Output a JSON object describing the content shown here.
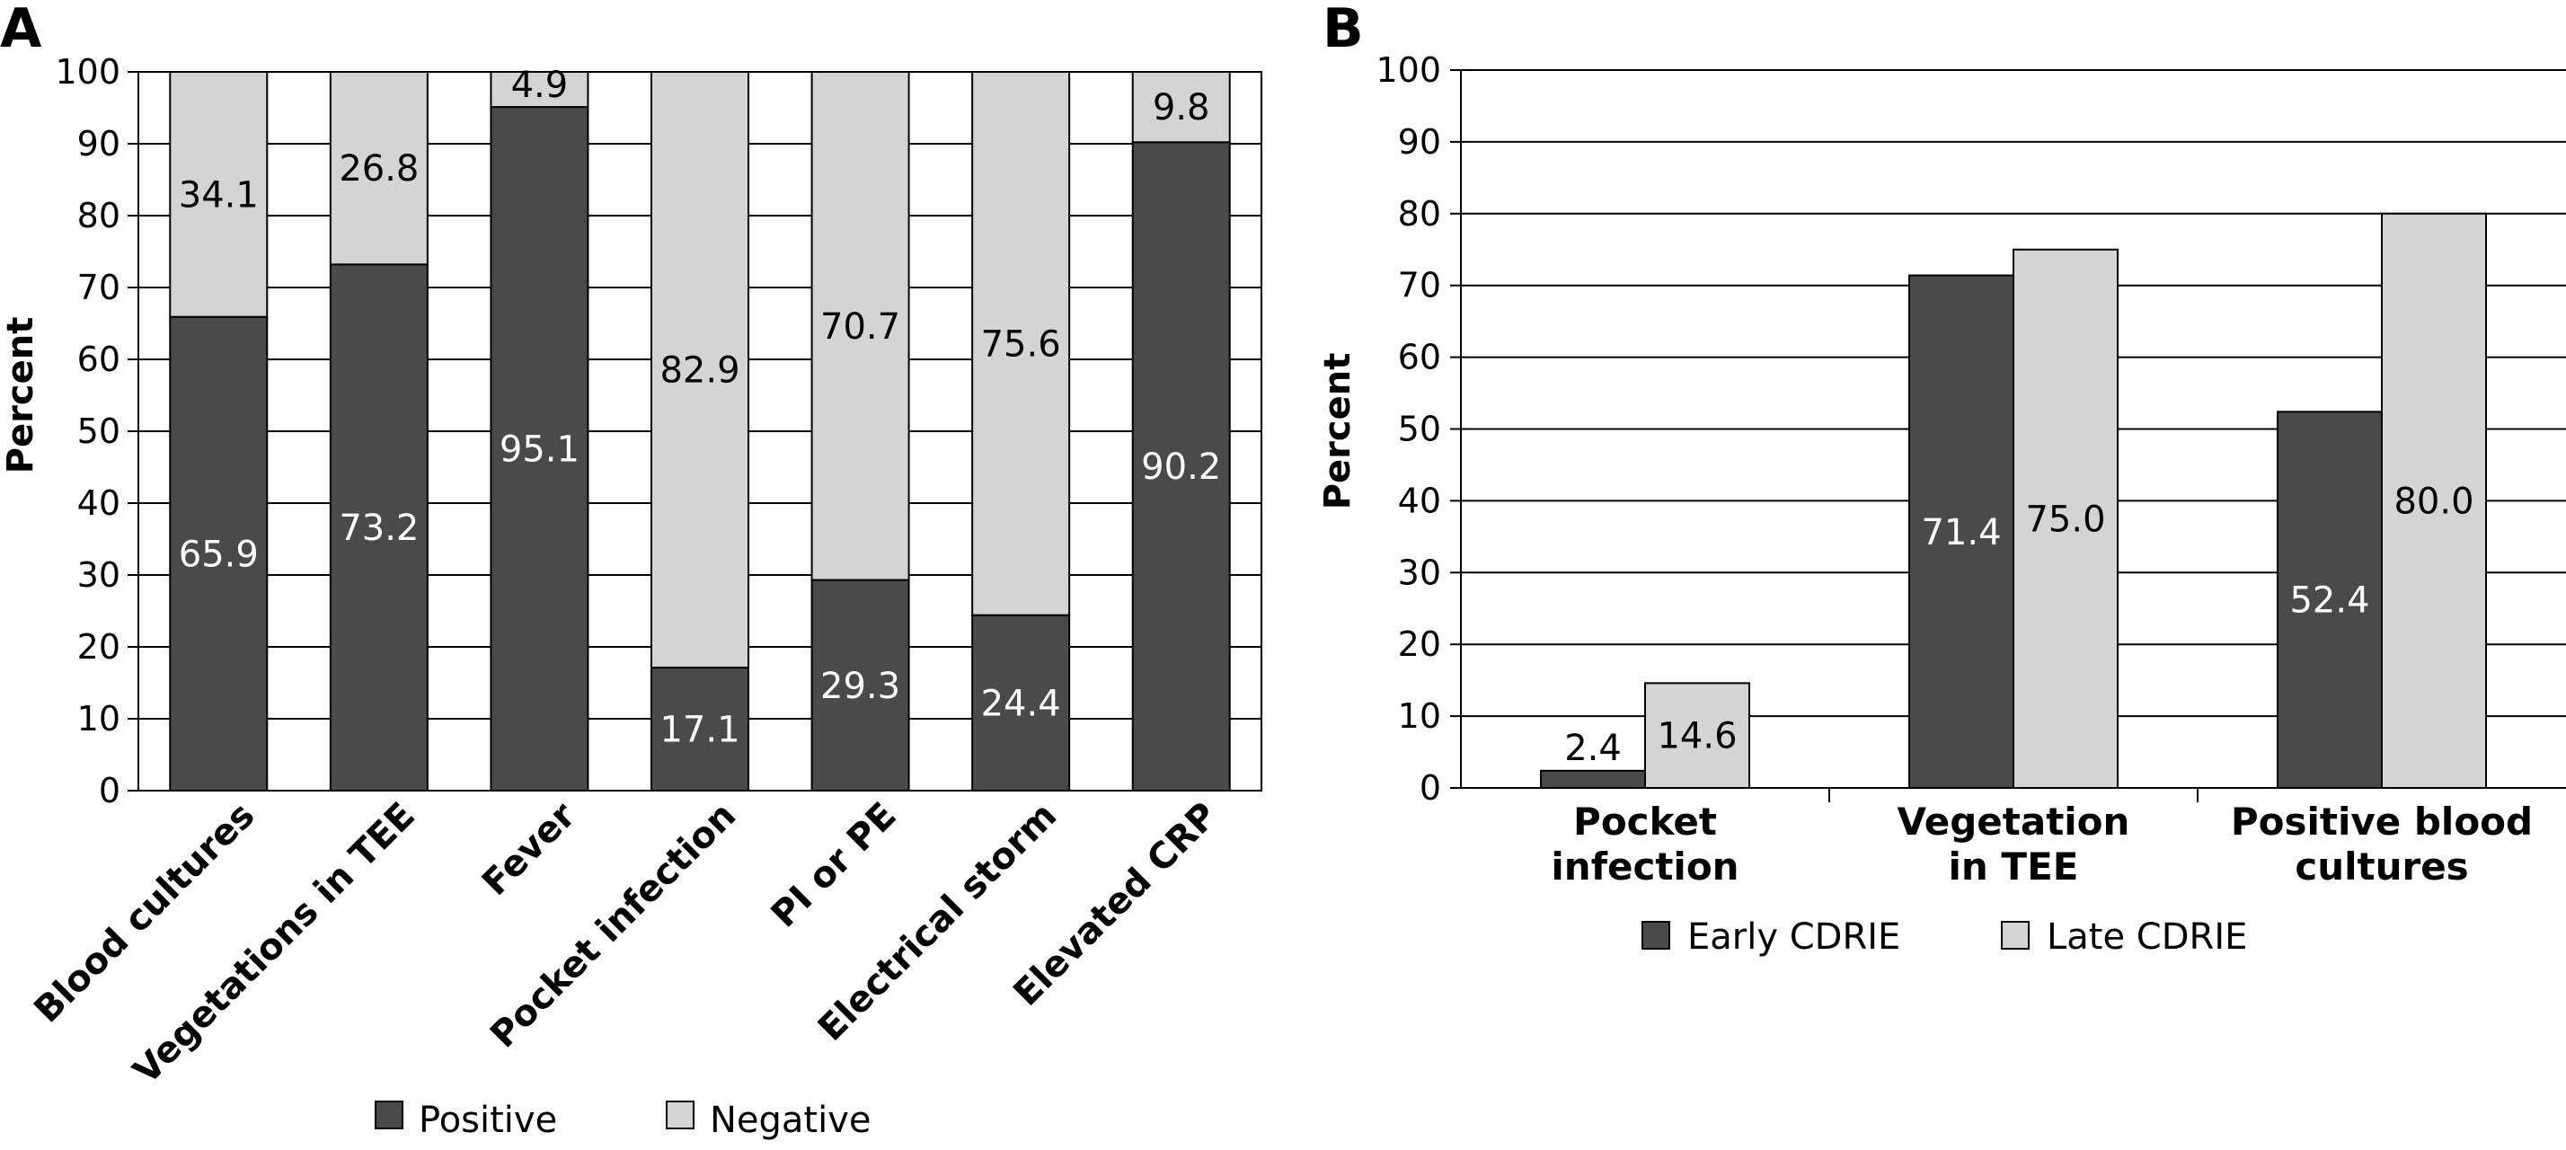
{
  "chart_data": [
    {
      "panel": "A",
      "type": "bar",
      "stacked": true,
      "ylabel": "Percent",
      "ylim": [
        0,
        100
      ],
      "yticks": [
        0,
        10,
        20,
        30,
        40,
        50,
        60,
        70,
        80,
        90,
        100
      ],
      "grid": true,
      "categories": [
        "Blood cultures",
        "Vegetations in TEE",
        "Fever",
        "Pocket infection",
        "PI or PE",
        "Electrical storm",
        "Elevated CRP"
      ],
      "series": [
        {
          "name": "Positive",
          "color": "#4a4a4a",
          "label_color": "#ffffff",
          "values": [
            65.9,
            73.2,
            95.1,
            17.1,
            29.3,
            24.4,
            90.2
          ],
          "labels": [
            "65.9",
            "73.2",
            "95.1",
            "17.1",
            "29.3",
            "24.4",
            "90.2"
          ]
        },
        {
          "name": "Negative",
          "color": "#d4d4d4",
          "label_color": "#000000",
          "values": [
            34.1,
            26.8,
            4.9,
            82.9,
            70.7,
            75.6,
            9.8
          ],
          "labels": [
            "34.1",
            "26.8",
            "4.9",
            "82.9",
            "70.7",
            "75.6",
            "9.8"
          ]
        }
      ],
      "legend_position": "bottom"
    },
    {
      "panel": "B",
      "type": "bar",
      "stacked": false,
      "ylabel": "Percent",
      "ylim": [
        0,
        100
      ],
      "yticks": [
        0,
        10,
        20,
        30,
        40,
        50,
        60,
        70,
        80,
        90,
        100
      ],
      "grid": true,
      "categories": [
        [
          "Pocket",
          "infection"
        ],
        [
          "Vegetation",
          "in TEE"
        ],
        [
          "Positive blood",
          "cultures"
        ]
      ],
      "series": [
        {
          "name": "Early CDRIE",
          "color": "#4a4a4a",
          "label_color": "#ffffff",
          "values": [
            2.4,
            71.4,
            52.4
          ],
          "labels": [
            "2.4",
            "71.4",
            "52.4"
          ]
        },
        {
          "name": "Late CDRIE",
          "color": "#d4d4d4",
          "label_color": "#000000",
          "values": [
            14.6,
            75.0,
            80.0
          ],
          "labels": [
            "14.6",
            "75.0",
            "80.0"
          ]
        }
      ],
      "legend_position": "bottom"
    }
  ]
}
